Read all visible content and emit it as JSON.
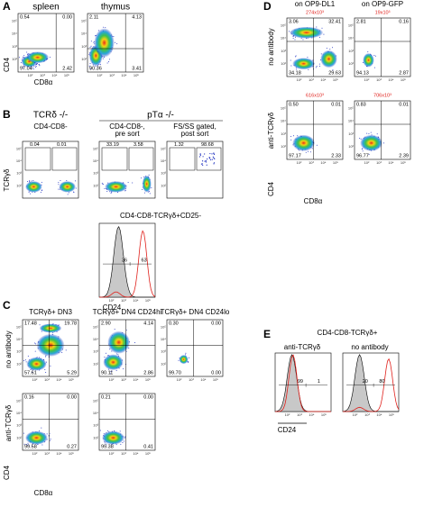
{
  "axis_ticks": [
    "10²",
    "10³",
    "10⁴",
    "10⁵"
  ],
  "panels": {
    "A": {
      "label": "A",
      "y_axis": "CD4",
      "x_axis": "CD8α",
      "plots": [
        {
          "title": "spleen",
          "tl": "0.54",
          "tr": "0.00",
          "bl": "97.04",
          "br": "2.42"
        },
        {
          "title": "thymus",
          "tl": "2.11",
          "tr": "4.13",
          "bl": "90.36",
          "br": "3.41"
        }
      ]
    },
    "B": {
      "label": "B",
      "group_left": "TCRδ -/-",
      "group_right": "pTα -/-",
      "y_axis": "TCRγδ",
      "plots": [
        {
          "title": "CD4-CD8-",
          "l": "0.04",
          "r": "0.01"
        },
        {
          "title": "CD4-CD8-,",
          "title2": "pre sort",
          "l": "33.19",
          "r": "3.58"
        },
        {
          "title": "FS/SS gated,",
          "title2": "post sort",
          "l": "1.32",
          "r": "98.68"
        }
      ],
      "hist": {
        "title": "CD4-CD8-TCRγδ+CD25-",
        "left": "36",
        "right": "63",
        "x_axis": "CD24"
      }
    },
    "C": {
      "label": "C",
      "y_axis": "CD4",
      "x_axis": "CD8α",
      "row_labels": [
        "no antibody",
        "anti-TCRγδ"
      ],
      "titles": [
        "TCRγδ+ DN3",
        "TCRγδ+ DN4 CD24hi",
        "TCRγδ+ DN4 CD24lo"
      ],
      "rows": [
        [
          {
            "tl": "17.48",
            "tr": "19.78",
            "bl": "57.61",
            "br": "5.29"
          },
          {
            "tl": "2.90",
            "tr": "4.14",
            "bl": "90.11",
            "br": "2.86"
          },
          {
            "tl": "0.30",
            "tr": "0.00",
            "bl": "99.70",
            "br": "0.00"
          }
        ],
        [
          {
            "tl": "0.16",
            "tr": "0.00",
            "bl": "99.58",
            "br": "0.27"
          },
          {
            "tl": "0.21",
            "tr": "0.00",
            "bl": "99.38",
            "br": "0.41"
          }
        ]
      ]
    },
    "D": {
      "label": "D",
      "y_axis": "CD4",
      "x_axis": "CD8α",
      "row_labels": [
        "no antibody",
        "anti-TCRγδ"
      ],
      "titles": [
        "on OP9-DL1",
        "on OP9-GFP"
      ],
      "rows": [
        [
          {
            "count": "274x10³",
            "tl": "3.06",
            "tr": "32.41",
            "bl": "34.18",
            "br": "29.63"
          },
          {
            "count": "19x10³",
            "tl": "2.81",
            "tr": "0.16",
            "bl": "94.13",
            "br": "2.87"
          }
        ],
        [
          {
            "count": "616x10³",
            "tl": "0.50",
            "tr": "0.01",
            "bl": "97.17",
            "br": "2.33"
          },
          {
            "count": "706x10³",
            "tl": "0.83",
            "tr": "0.01",
            "bl": "96.77",
            "br": "2.39"
          }
        ]
      ]
    },
    "E": {
      "label": "E",
      "title": "CD4-CD8-TCRγδ+",
      "x_axis": "CD24",
      "hists": [
        {
          "title": "anti-TCRγδ",
          "left": "99",
          "right": "1"
        },
        {
          "title": "no antibody",
          "left": "20",
          "right": "80"
        }
      ]
    }
  }
}
